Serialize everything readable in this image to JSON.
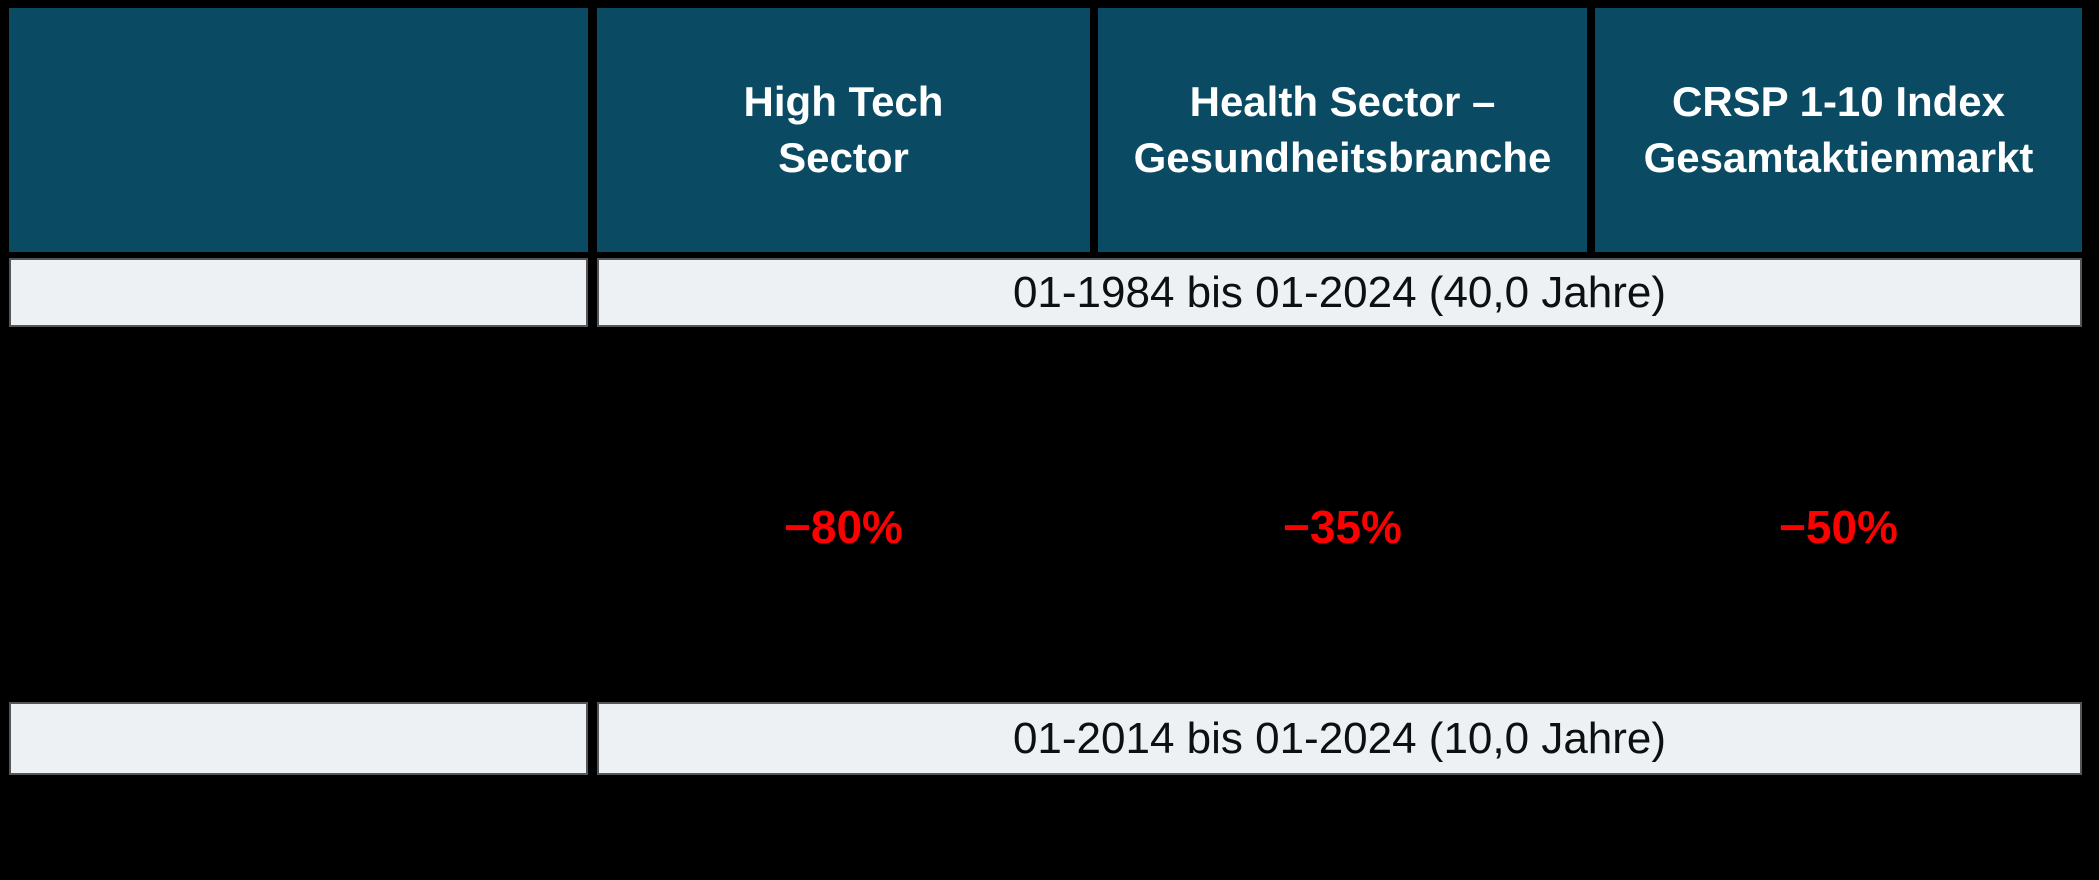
{
  "colors": {
    "background": "#000000",
    "header_bg": "#0a4a63",
    "header_text": "#ffffff",
    "band_bg": "#eef1f4",
    "band_border": "#54575a",
    "band_text": "#0d0f10",
    "negative": "#ff0000"
  },
  "header": {
    "columns": [
      {
        "line1": "High Tech",
        "line2": "Sector"
      },
      {
        "line1": "Health Sector –",
        "line2": "Gesundheitsbranche"
      },
      {
        "line1": "CRSP 1-10 Index",
        "line2": "Gesamtaktienmarkt"
      }
    ]
  },
  "period_bands": [
    {
      "label": "01-1984 bis 01-2024 (40,0 Jahre)"
    },
    {
      "label": "01-2014 bis 01-2024 (10,0 Jahre)"
    }
  ],
  "drawdown_row": {
    "values": [
      {
        "text": "−80%"
      },
      {
        "text": "−35%"
      },
      {
        "text": "−50%"
      }
    ]
  },
  "chart_data": {
    "type": "table",
    "columns": [
      "",
      "High Tech Sector",
      "Health Sector – Gesundheitsbranche",
      "CRSP 1-10 Index Gesamtaktienmarkt"
    ],
    "rows": [
      {
        "kind": "period-band",
        "label": "01-1984 bis 01-2024 (40,0 Jahre)",
        "spans_value_columns": true
      },
      {
        "kind": "values",
        "label": "",
        "values": [
          "−80%",
          "−35%",
          "−50%"
        ],
        "values_numeric_pct": [
          -80,
          -35,
          -50
        ],
        "value_color": "#ff0000"
      },
      {
        "kind": "period-band",
        "label": "01-2014 bis 01-2024 (10,0 Jahre)",
        "spans_value_columns": true
      }
    ],
    "legend_position": "none",
    "grid": "black-separators-on-black-background"
  }
}
